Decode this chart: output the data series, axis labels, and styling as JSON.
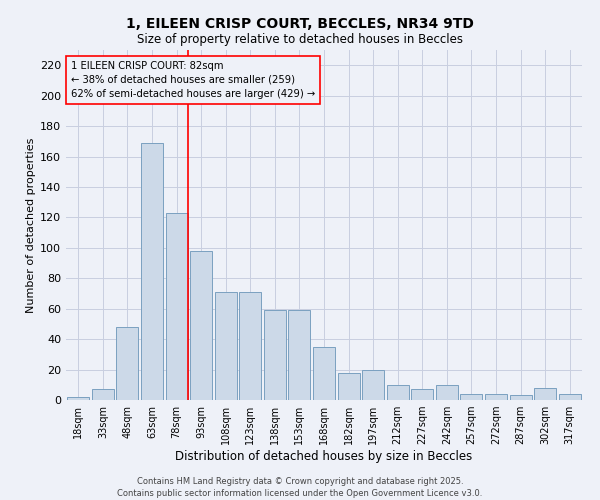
{
  "title_line1": "1, EILEEN CRISP COURT, BECCLES, NR34 9TD",
  "title_line2": "Size of property relative to detached houses in Beccles",
  "xlabel": "Distribution of detached houses by size in Beccles",
  "ylabel": "Number of detached properties",
  "bar_color": "#ccd9e8",
  "bar_edge_color": "#7aa0c0",
  "background_color": "#eef1f8",
  "grid_color": "#c8cee0",
  "categories": [
    "18sqm",
    "33sqm",
    "48sqm",
    "63sqm",
    "78sqm",
    "93sqm",
    "108sqm",
    "123sqm",
    "138sqm",
    "153sqm",
    "168sqm",
    "182sqm",
    "197sqm",
    "212sqm",
    "227sqm",
    "242sqm",
    "257sqm",
    "272sqm",
    "287sqm",
    "302sqm",
    "317sqm"
  ],
  "values": [
    2,
    7,
    48,
    169,
    123,
    98,
    71,
    71,
    59,
    59,
    35,
    18,
    20,
    10,
    7,
    10,
    4,
    4,
    3,
    8,
    4
  ],
  "red_line_index": 4,
  "annotation_text": "1 EILEEN CRISP COURT: 82sqm\n← 38% of detached houses are smaller (259)\n62% of semi-detached houses are larger (429) →",
  "ylim": [
    0,
    230
  ],
  "yticks": [
    0,
    20,
    40,
    60,
    80,
    100,
    120,
    140,
    160,
    180,
    200,
    220
  ],
  "footnote": "Contains HM Land Registry data © Crown copyright and database right 2025.\nContains public sector information licensed under the Open Government Licence v3.0."
}
